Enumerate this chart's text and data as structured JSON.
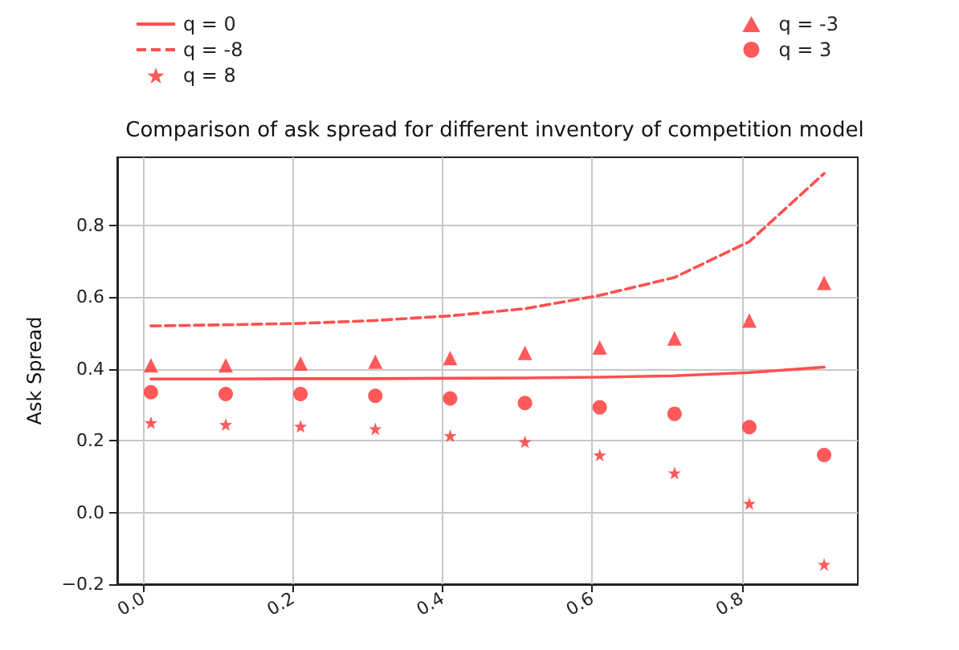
{
  "chart_data": {
    "type": "line",
    "title": "Comparison of ask spread for different inventory of competition model",
    "ylabel": "Ask Spread",
    "x": [
      0.01,
      0.11,
      0.21,
      0.31,
      0.41,
      0.51,
      0.61,
      0.71,
      0.81,
      0.91
    ],
    "series": [
      {
        "name": "q = 0",
        "color": "#ff5050",
        "line_style": "solid",
        "marker": "none",
        "values": [
          0.372,
          0.372,
          0.373,
          0.373,
          0.374,
          0.375,
          0.377,
          0.381,
          0.39,
          0.405
        ]
      },
      {
        "name": "q = -8",
        "color": "#ff5050",
        "line_style": "dashed",
        "marker": "none",
        "values": [
          0.52,
          0.523,
          0.527,
          0.535,
          0.548,
          0.568,
          0.605,
          0.655,
          0.755,
          0.945
        ]
      },
      {
        "name": "q = -3",
        "type": "scatter",
        "color": "#ff3030",
        "marker": "triangle",
        "values": [
          0.41,
          0.41,
          0.415,
          0.42,
          0.43,
          0.445,
          0.46,
          0.485,
          0.535,
          0.64
        ]
      },
      {
        "name": "q = 3",
        "type": "scatter",
        "color": "#ff3030",
        "marker": "circle",
        "values": [
          0.335,
          0.33,
          0.33,
          0.325,
          0.318,
          0.305,
          0.293,
          0.275,
          0.238,
          0.16
        ]
      },
      {
        "name": "q = 8",
        "type": "scatter",
        "color": "#ff3030",
        "marker": "star",
        "values": [
          0.25,
          0.245,
          0.24,
          0.233,
          0.214,
          0.197,
          0.16,
          0.11,
          0.025,
          -0.145
        ]
      }
    ],
    "xlim": [
      -0.035,
      0.955
    ],
    "xticks": [
      {
        "value": 0,
        "label": "0.0"
      },
      0.2,
      0.4,
      0.6,
      0.8
    ],
    "ylim": [
      -0.2,
      0.99
    ],
    "yticks": [
      {
        "value": -0.2,
        "label": "−0.2"
      },
      {
        "value": 0,
        "label": "0.0"
      },
      0.2,
      0.4,
      0.6,
      0.8
    ],
    "grid": true,
    "legend": "top"
  }
}
